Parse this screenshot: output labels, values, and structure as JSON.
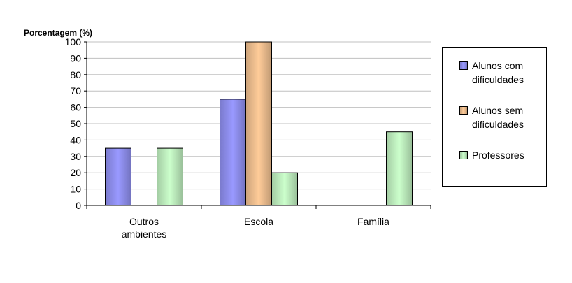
{
  "chart_data": {
    "type": "bar",
    "ylabel": "Porcentagem (%)",
    "xlabel": "",
    "title": "",
    "ylim": [
      0,
      100
    ],
    "yticks": [
      0,
      10,
      20,
      30,
      40,
      50,
      60,
      70,
      80,
      90,
      100
    ],
    "categories": [
      "Outros ambientes",
      "Escola",
      "Família"
    ],
    "series": [
      {
        "name": "Alunos com dificuldades",
        "values": [
          35,
          65,
          0
        ],
        "color": "#9999ff"
      },
      {
        "name": "Alunos sem dificuldades",
        "values": [
          0,
          100,
          0
        ],
        "color": "#ffcc99"
      },
      {
        "name": "Professores",
        "values": [
          35,
          20,
          45
        ],
        "color": "#ccffcc"
      }
    ],
    "grid": true,
    "legend_position": "right"
  }
}
